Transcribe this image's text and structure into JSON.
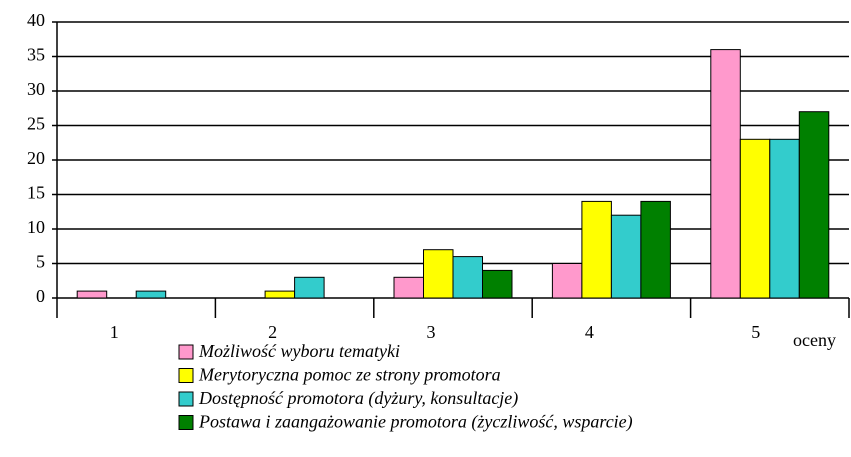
{
  "chart_data": {
    "type": "bar",
    "categories": [
      "1",
      "2",
      "3",
      "4",
      "5"
    ],
    "x_label": "oceny",
    "series": [
      {
        "name": "Możliwość wyboru tematyki",
        "color": "#ff99cc",
        "values": [
          1,
          0,
          3,
          5,
          36
        ]
      },
      {
        "name": "Merytoryczna pomoc ze strony promotora",
        "color": "#ffff00",
        "values": [
          0,
          1,
          7,
          14,
          23
        ]
      },
      {
        "name": "Dostępność promotora (dyżury, konsultacje)",
        "color": "#33cccc",
        "values": [
          1,
          3,
          6,
          12,
          23
        ]
      },
      {
        "name": "Postawa i zaangażowanie promotora (życzliwość, wsparcie)",
        "color": "#008000",
        "values": [
          0,
          0,
          4,
          14,
          27
        ]
      }
    ],
    "ylim": [
      0,
      40
    ],
    "yticks": [
      0,
      5,
      10,
      15,
      20,
      25,
      30,
      35,
      40
    ],
    "grid": true,
    "legend": "bottom"
  }
}
